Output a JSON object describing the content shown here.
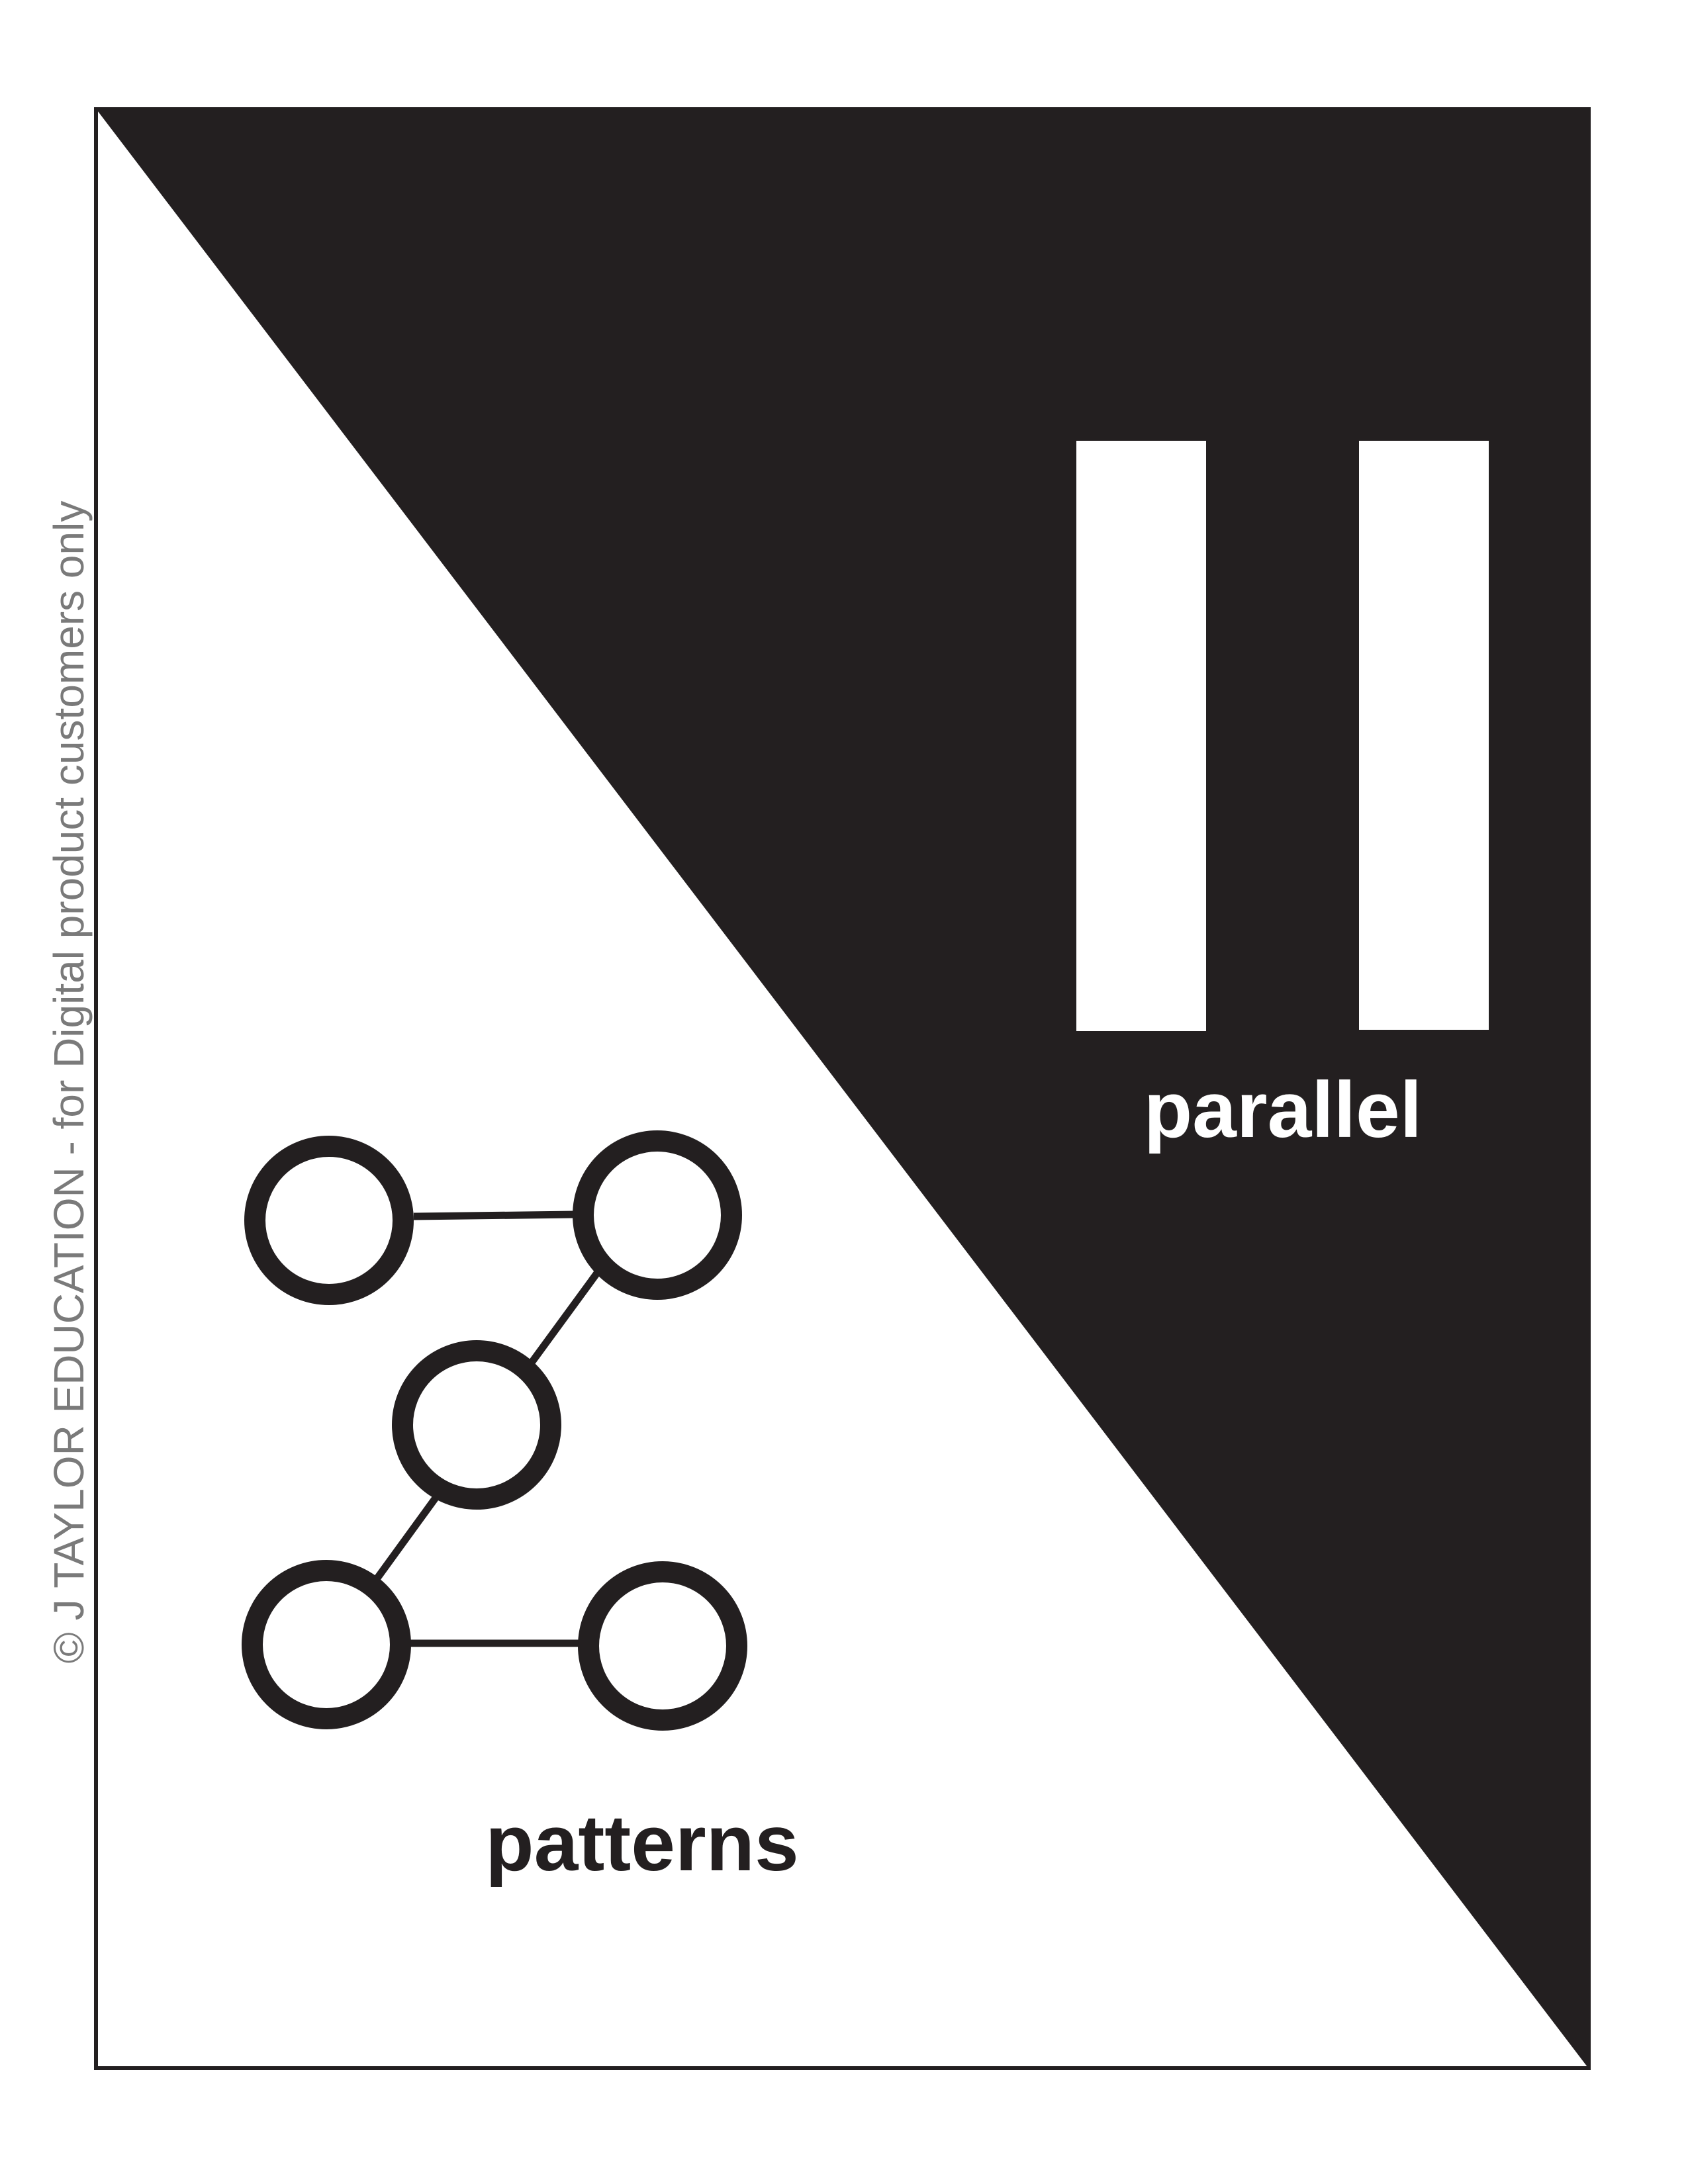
{
  "card": {
    "top_label": "parallel",
    "bottom_label": "patterns",
    "copyright": "© J TAYLOR EDUCATION - for Digital product customers only"
  },
  "icons": {
    "top": "parallel-lines-icon",
    "bottom": "z-node-pattern-icon"
  },
  "colors": {
    "dark": "#231f20",
    "light": "#ffffff",
    "copyright_gray": "#7a7a7a"
  }
}
